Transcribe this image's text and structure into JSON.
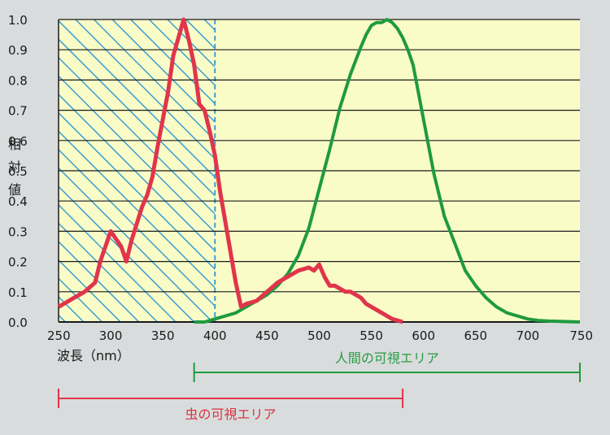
{
  "chart_data": {
    "type": "line",
    "xlabel": "波長（nm）",
    "ylabel": "相対値",
    "xlim": [
      250,
      750
    ],
    "ylim": [
      0,
      1.0
    ],
    "xticks": [
      "250",
      "300",
      "350",
      "400",
      "450",
      "500",
      "550",
      "600",
      "650",
      "700",
      "750"
    ],
    "yticks": [
      "0.0",
      "0.1",
      "0.2",
      "0.3",
      "0.4",
      "0.5",
      "0.6",
      "0.7",
      "0.8",
      "0.9",
      "1.0"
    ],
    "grid": "horizontal",
    "colors": {
      "plot_bg": "#fafcc8",
      "insect": "#e0354a",
      "human": "#1f9a3e",
      "hatch": "#3a9fcf"
    },
    "series": [
      {
        "key": "insect",
        "x": [
          250,
          255,
          265,
          275,
          285,
          290,
          300,
          310,
          315,
          320,
          330,
          335,
          340,
          345,
          355,
          360,
          370,
          375,
          380,
          385,
          390,
          395,
          400,
          405,
          410,
          415,
          420,
          425,
          430,
          440,
          450,
          460,
          470,
          480,
          490,
          495,
          500,
          505,
          510,
          515,
          520,
          525,
          530,
          540,
          545,
          550,
          555,
          560,
          570,
          580
        ],
        "y": [
          0.05,
          0.06,
          0.08,
          0.1,
          0.13,
          0.2,
          0.3,
          0.25,
          0.2,
          0.27,
          0.38,
          0.42,
          0.48,
          0.58,
          0.76,
          0.88,
          1.0,
          0.93,
          0.85,
          0.72,
          0.7,
          0.63,
          0.55,
          0.43,
          0.33,
          0.23,
          0.13,
          0.05,
          0.06,
          0.07,
          0.1,
          0.13,
          0.15,
          0.17,
          0.18,
          0.17,
          0.19,
          0.15,
          0.12,
          0.12,
          0.11,
          0.1,
          0.1,
          0.08,
          0.06,
          0.05,
          0.04,
          0.03,
          0.01,
          0.0
        ]
      },
      {
        "key": "human",
        "x": [
          380,
          390,
          400,
          410,
          420,
          430,
          440,
          450,
          460,
          470,
          480,
          490,
          500,
          510,
          520,
          530,
          540,
          545,
          550,
          555,
          560,
          565,
          570,
          575,
          580,
          585,
          590,
          600,
          610,
          620,
          630,
          640,
          650,
          660,
          670,
          680,
          690,
          700,
          710,
          720,
          730,
          740,
          750
        ],
        "y": [
          0.0,
          0.0,
          0.01,
          0.02,
          0.03,
          0.05,
          0.07,
          0.09,
          0.12,
          0.16,
          0.22,
          0.31,
          0.44,
          0.57,
          0.71,
          0.82,
          0.91,
          0.95,
          0.98,
          0.99,
          0.99,
          1.0,
          0.99,
          0.97,
          0.94,
          0.9,
          0.85,
          0.67,
          0.49,
          0.35,
          0.26,
          0.17,
          0.12,
          0.08,
          0.05,
          0.03,
          0.02,
          0.01,
          0.005,
          0.003,
          0.002,
          0.001,
          0.0
        ]
      }
    ],
    "hatched_region": {
      "x": [
        250,
        400
      ]
    },
    "ranges": [
      {
        "key": "human",
        "label": "人間の可視エリア",
        "from": 380,
        "to": 750
      },
      {
        "key": "insect",
        "label": "虫の可視エリア",
        "from": 250,
        "to": 580
      }
    ]
  }
}
